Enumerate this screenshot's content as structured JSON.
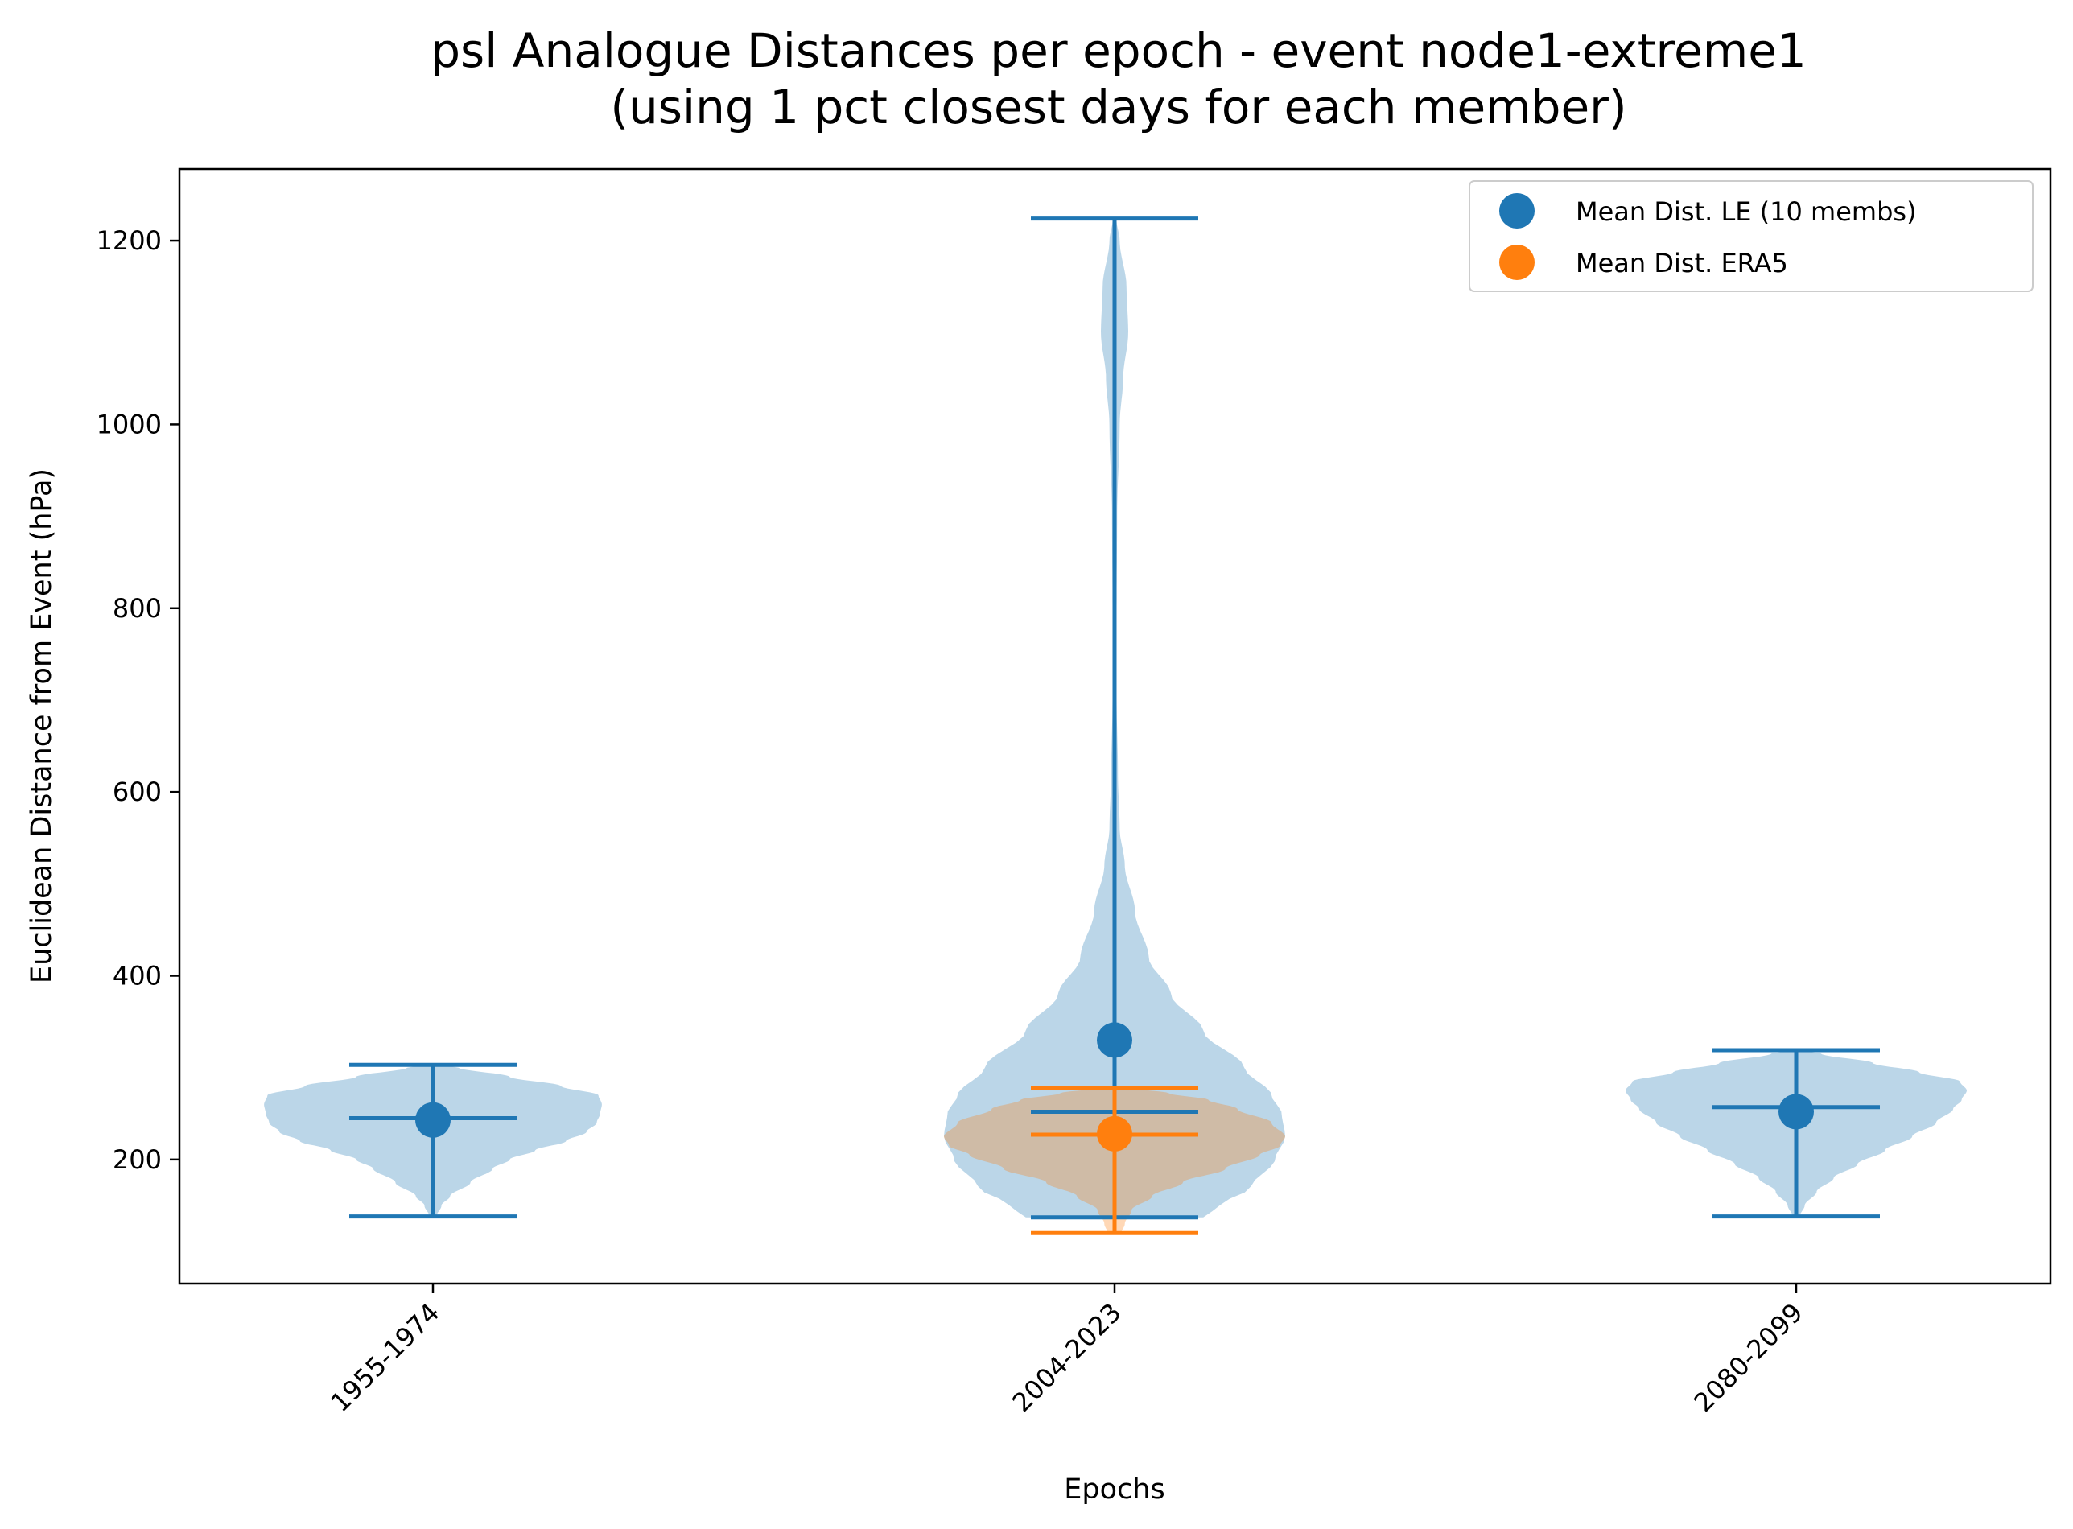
{
  "chart_data": {
    "type": "violin",
    "title": [
      "psl Analogue Distances per epoch - event node1-extreme1",
      "(using 1 pct closest days for each member)"
    ],
    "xlabel": "Epochs",
    "ylabel": "Euclidean Distance from Event (hPa)",
    "categories": [
      "1955-1974",
      "2004-2023",
      "2080-2099"
    ],
    "ylim": [
      65,
      1278
    ],
    "yticks": [
      200,
      400,
      600,
      800,
      1000,
      1200
    ],
    "grid": false,
    "legend_position": "top-right",
    "series": [
      {
        "name": "Mean Dist. LE (10 membs)",
        "color": "#1f77b4",
        "fill_color": "#1f77b4",
        "violins": [
          {
            "category": "1955-1974",
            "min": 138,
            "max": 303,
            "median": 245,
            "mean": 243,
            "profile": [
              [
                138,
                0.02
              ],
              [
                150,
                0.05
              ],
              [
                160,
                0.1
              ],
              [
                175,
                0.22
              ],
              [
                190,
                0.35
              ],
              [
                200,
                0.45
              ],
              [
                210,
                0.6
              ],
              [
                220,
                0.78
              ],
              [
                230,
                0.9
              ],
              [
                240,
                0.96
              ],
              [
                250,
                0.98
              ],
              [
                260,
                0.99
              ],
              [
                270,
                0.97
              ],
              [
                280,
                0.75
              ],
              [
                290,
                0.45
              ],
              [
                300,
                0.15
              ],
              [
                303,
                0.02
              ]
            ]
          },
          {
            "category": "2004-2023",
            "min": 137,
            "max": 1224,
            "median": 252,
            "mean": 330,
            "profile": [
              [
                137,
                0.52
              ],
              [
                150,
                0.62
              ],
              [
                170,
                0.8
              ],
              [
                200,
                0.94
              ],
              [
                225,
                1.0
              ],
              [
                250,
                0.98
              ],
              [
                270,
                0.92
              ],
              [
                300,
                0.76
              ],
              [
                340,
                0.52
              ],
              [
                380,
                0.33
              ],
              [
                420,
                0.2
              ],
              [
                470,
                0.12
              ],
              [
                520,
                0.06
              ],
              [
                560,
                0.03
              ],
              [
                620,
                0.02
              ],
              [
                700,
                0.012
              ],
              [
                800,
                0.012
              ],
              [
                900,
                0.015
              ],
              [
                1000,
                0.03
              ],
              [
                1050,
                0.05
              ],
              [
                1100,
                0.08
              ],
              [
                1150,
                0.07
              ],
              [
                1200,
                0.03
              ],
              [
                1224,
                0.01
              ]
            ]
          },
          {
            "category": "2080-2099",
            "min": 138,
            "max": 319,
            "median": 257,
            "mean": 252,
            "profile": [
              [
                138,
                0.02
              ],
              [
                150,
                0.05
              ],
              [
                165,
                0.12
              ],
              [
                180,
                0.22
              ],
              [
                195,
                0.36
              ],
              [
                210,
                0.52
              ],
              [
                225,
                0.68
              ],
              [
                240,
                0.82
              ],
              [
                255,
                0.92
              ],
              [
                265,
                0.97
              ],
              [
                275,
                1.0
              ],
              [
                285,
                0.96
              ],
              [
                295,
                0.72
              ],
              [
                305,
                0.45
              ],
              [
                315,
                0.15
              ],
              [
                319,
                0.02
              ]
            ]
          }
        ]
      },
      {
        "name": "Mean Dist. ERA5",
        "color": "#ff7f0e",
        "fill_color": "#ff7f0e",
        "violins": [
          {
            "category": "2004-2023",
            "min": 120,
            "max": 278,
            "median": 227,
            "mean": 228,
            "profile": [
              [
                120,
                0.04
              ],
              [
                130,
                0.06
              ],
              [
                145,
                0.1
              ],
              [
                160,
                0.22
              ],
              [
                175,
                0.4
              ],
              [
                190,
                0.65
              ],
              [
                205,
                0.85
              ],
              [
                215,
                0.97
              ],
              [
                225,
                1.0
              ],
              [
                240,
                0.92
              ],
              [
                255,
                0.72
              ],
              [
                265,
                0.55
              ],
              [
                272,
                0.32
              ],
              [
                278,
                0.1
              ]
            ]
          }
        ]
      }
    ]
  }
}
